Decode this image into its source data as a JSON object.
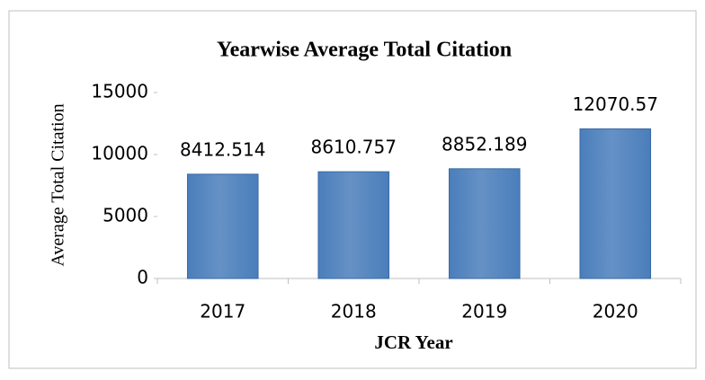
{
  "chart_data": {
    "type": "bar",
    "title": "Yearwise Average Total Citation",
    "x_label": "JCR  Year",
    "y_label": "Average  Total Citation",
    "categories": [
      "2017",
      "2018",
      "2019",
      "2020"
    ],
    "values": [
      8412.514,
      8610.757,
      8852.189,
      12070.57
    ],
    "color": "#4a7ebb",
    "ylim": [
      0,
      15000
    ],
    "yticks": [
      0,
      5000,
      10000,
      15000
    ],
    "grid": false
  }
}
